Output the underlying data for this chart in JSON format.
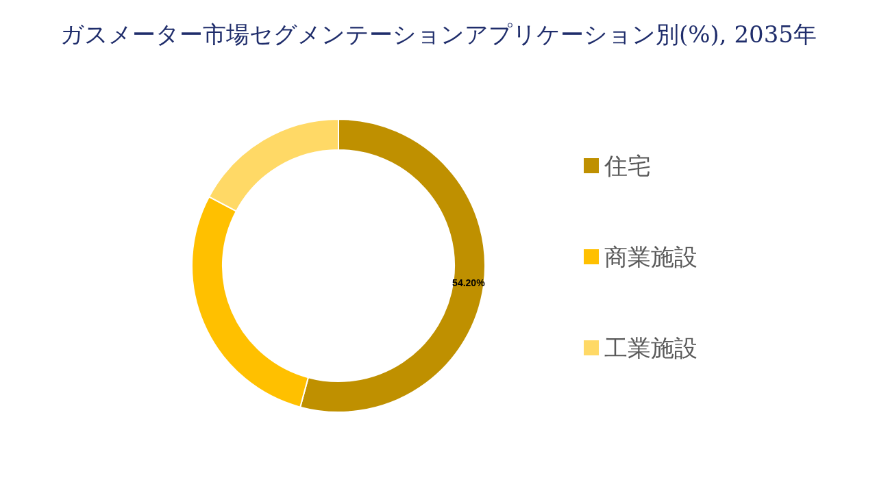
{
  "chart_data": {
    "type": "donut",
    "title": "ガスメーター市場セグメンテーションアプリケーション別(%), 2035年",
    "categories": [
      "住宅",
      "商業施設",
      "工業施設"
    ],
    "values": [
      54.2,
      28.6,
      17.2
    ],
    "colors": [
      "#bf9000",
      "#ffc000",
      "#ffd966"
    ],
    "value_labels": [
      "54.20%",
      null,
      null
    ],
    "legend": "right"
  }
}
